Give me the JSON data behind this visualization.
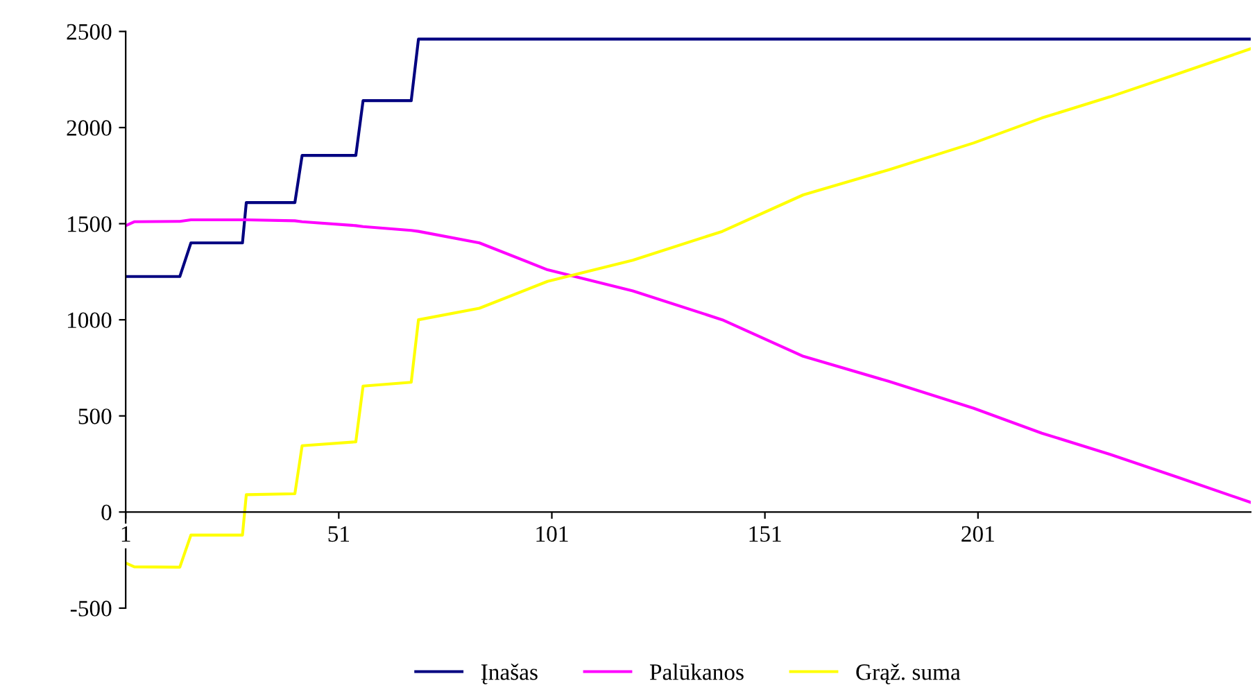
{
  "chart_data": {
    "type": "line",
    "x": [
      1,
      3,
      13.7,
      16.3,
      28.4,
      29.3,
      40.7,
      42.4,
      55,
      56.7,
      68,
      69.7,
      84,
      100,
      120,
      141,
      160,
      180,
      200,
      216,
      232,
      248,
      265
    ],
    "series": [
      {
        "name": "Įnašas",
        "color": "#000080",
        "values": [
          1225,
          1225,
          1225,
          1400,
          1400,
          1610,
          1610,
          1855,
          1855,
          2140,
          2140,
          2460,
          2460,
          2460,
          2460,
          2460,
          2460,
          2460,
          2460,
          2460,
          2460,
          2460,
          2460
        ]
      },
      {
        "name": "Palūkanos",
        "color": "#ff00ff",
        "values": [
          1490,
          1510,
          1512,
          1520,
          1520,
          1520,
          1515,
          1510,
          1490,
          1485,
          1465,
          1460,
          1400,
          1260,
          1150,
          1000,
          810,
          680,
          540,
          410,
          300,
          180,
          50
        ]
      },
      {
        "name": "Grąž. suma",
        "color": "#ffff00",
        "values": [
          -265,
          -285,
          -287,
          -120,
          -120,
          90,
          95,
          345,
          365,
          655,
          675,
          1000,
          1060,
          1200,
          1310,
          1460,
          1650,
          1780,
          1920,
          2050,
          2160,
          2280,
          2410
        ]
      }
    ],
    "xlim": [
      1,
      265
    ],
    "xticks": [
      1,
      51,
      101,
      151,
      201
    ],
    "ylim": [
      -500,
      2500
    ],
    "yticks": [
      -500,
      0,
      500,
      1000,
      1500,
      2000,
      2500
    ],
    "grid": false,
    "legend": "bottom",
    "marker": "none",
    "line_style": "solid"
  }
}
